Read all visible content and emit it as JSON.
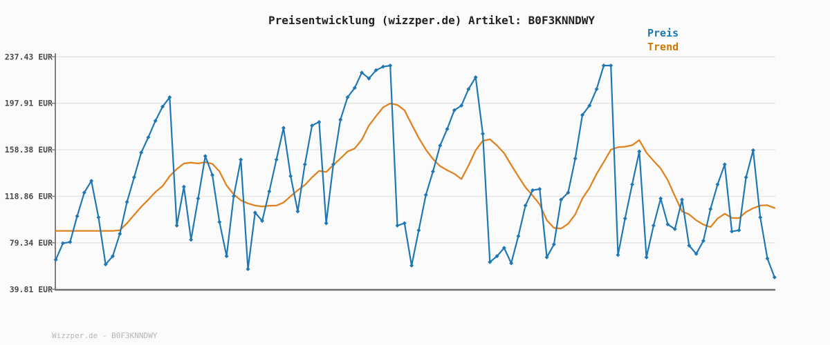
{
  "title": "Preisentwicklung (wizzper.de) Artikel: B0F3KNNDWY",
  "legend": {
    "items": [
      {
        "label": "Preis",
        "color": "#1878b4"
      },
      {
        "label": "Trend",
        "color": "#cc7a00"
      }
    ]
  },
  "footer": {
    "text": "Wizzper.de - B0F3KNNDWY"
  },
  "colors": {
    "background": "#fbfbfb",
    "grid": "#e3e3e3",
    "axis": "#7d7d7d",
    "price_line": "#1f77b4",
    "trend_line": "#e0821e",
    "tick_label": "#4a4a4a"
  },
  "chart_data": {
    "type": "line",
    "title": "Preisentwicklung (wizzper.de) Artikel: B0F3KNNDWY",
    "xlabel": "",
    "ylabel": "EUR",
    "grid": true,
    "legend_position": "top-right",
    "ylim": [
      39.81,
      237.43
    ],
    "y_ticks": [
      {
        "value": 237.43,
        "label": "237.43 EUR"
      },
      {
        "value": 197.91,
        "label": "197.91 EUR"
      },
      {
        "value": 158.38,
        "label": "158.38 EUR"
      },
      {
        "value": 118.86,
        "label": "118.86 EUR"
      },
      {
        "value": 79.34,
        "label": "79.34 EUR"
      },
      {
        "value": 39.81,
        "label": "39.81 EUR"
      }
    ],
    "x_tick_labels": [],
    "series": [
      {
        "name": "Preis",
        "color": "#1f77b4",
        "marker": "diamond",
        "values": [
          65,
          79,
          80,
          102,
          122,
          132,
          101,
          61,
          68,
          87,
          114,
          135,
          156,
          169,
          183,
          195,
          203,
          94,
          127,
          82,
          117,
          153,
          137,
          97,
          68,
          119,
          150,
          57,
          105,
          98,
          123,
          150,
          177,
          136,
          106,
          146,
          179,
          182,
          96,
          146,
          184,
          203,
          211,
          224,
          219,
          226,
          229,
          230,
          94,
          96,
          60,
          90,
          120,
          140,
          162,
          176,
          192,
          196,
          210,
          220,
          172,
          63,
          68,
          75,
          62,
          85,
          111,
          124,
          125,
          67,
          78,
          116,
          122,
          151,
          188,
          196,
          210,
          230,
          230,
          69,
          100,
          129,
          157,
          67,
          94,
          117,
          95,
          91,
          116,
          77,
          70,
          81,
          108,
          129,
          146,
          89,
          90,
          135,
          158,
          101,
          66,
          50
        ]
      },
      {
        "name": "Trend",
        "color": "#e0821e",
        "marker": "none",
        "values": [
          89.5,
          89.5,
          89.5,
          89.5,
          89.5,
          89.5,
          89.5,
          89.5,
          89.5,
          90,
          96,
          103,
          110,
          116,
          122.5,
          127.5,
          136,
          142,
          146.8,
          147.5,
          146.8,
          147.9,
          146.5,
          140,
          128,
          120.5,
          115.5,
          112.8,
          111,
          110.2,
          110.8,
          111,
          113.5,
          119,
          124,
          128.5,
          135,
          140.5,
          139.5,
          145.5,
          151,
          157,
          159.5,
          167,
          179,
          187,
          194.5,
          197.8,
          196.5,
          192,
          180,
          168.5,
          158.5,
          150.5,
          144.5,
          141,
          138,
          133.5,
          145,
          158,
          166,
          167.3,
          162,
          155.5,
          145.5,
          135.8,
          126.5,
          119.5,
          112,
          98.5,
          92,
          91.5,
          95.5,
          103.5,
          117,
          126,
          138,
          148,
          158.5,
          160.6,
          161,
          162.3,
          166.6,
          156,
          149,
          142.5,
          132.5,
          119,
          106,
          103.5,
          98.5,
          94.8,
          92.7,
          100,
          104,
          100.5,
          100.3,
          105.5,
          108.8,
          111,
          111.3,
          108.9
        ]
      }
    ]
  }
}
